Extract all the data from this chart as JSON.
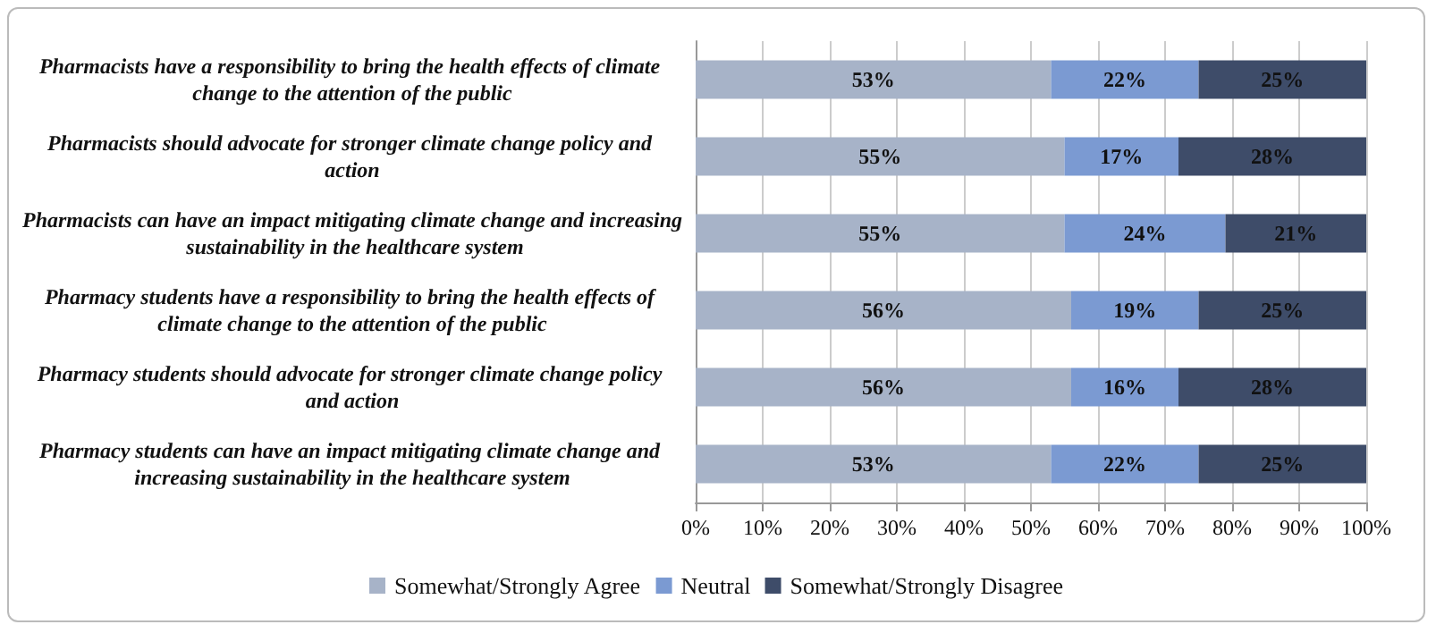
{
  "chart_data": {
    "type": "bar",
    "orientation": "horizontal",
    "stacked": true,
    "grid": "x",
    "legend": "bottom",
    "categories": [
      "Pharmacists have a responsibility to bring the health effects of climate change to the attention of the public",
      "Pharmacists should advocate for stronger climate change policy and action",
      "Pharmacists can have an impact mitigating climate change and increasing sustainability in the healthcare system",
      "Pharmacy students have a responsibility to bring the health effects of climate change to the attention of the public",
      "Pharmacy students should advocate for stronger climate change policy and action",
      "Pharmacy students can have an impact mitigating climate change and increasing sustainability in the healthcare system"
    ],
    "series": [
      {
        "name": "Somewhat/Strongly Agree",
        "color": "#a7b3c8",
        "values": [
          53,
          55,
          55,
          56,
          56,
          53
        ],
        "value_labels": [
          "53%",
          "55%",
          "55%",
          "56%",
          "56%",
          "53%"
        ]
      },
      {
        "name": "Neutral",
        "color": "#7b9ad2",
        "values": [
          22,
          17,
          24,
          19,
          16,
          22
        ],
        "value_labels": [
          "22%",
          "17%",
          "24%",
          "19%",
          "16%",
          "22%"
        ]
      },
      {
        "name": "Somewhat/Strongly Disagree",
        "color": "#3e4c69",
        "values": [
          25,
          28,
          21,
          25,
          28,
          25
        ],
        "value_labels": [
          "25%",
          "28%",
          "21%",
          "25%",
          "28%",
          "25%"
        ]
      }
    ],
    "xlim": [
      0,
      100
    ],
    "xticks": [
      {
        "value": 0,
        "label": "0%"
      },
      {
        "value": 10,
        "label": "10%"
      },
      {
        "value": 20,
        "label": "20%"
      },
      {
        "value": 30,
        "label": "30%"
      },
      {
        "value": 40,
        "label": "40%"
      },
      {
        "value": 50,
        "label": "50%"
      },
      {
        "value": 60,
        "label": "60%"
      },
      {
        "value": 70,
        "label": "70%"
      },
      {
        "value": 80,
        "label": "80%"
      },
      {
        "value": 90,
        "label": "90%"
      },
      {
        "value": 100,
        "label": "100%"
      }
    ]
  }
}
